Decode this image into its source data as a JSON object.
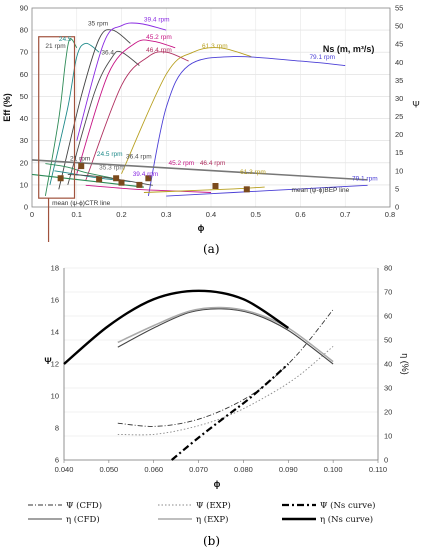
{
  "chart_data": [
    {
      "type": "line",
      "panel_label": "(a)",
      "xlabel": "ϕ",
      "ylabel": "Eff (%)",
      "y2label": "Ψ",
      "xlim": [
        0,
        0.8
      ],
      "ylim": [
        0,
        90
      ],
      "y2lim": [
        0,
        55
      ],
      "xticks": [
        "0",
        "0.1",
        "0.2",
        "0.3",
        "0.4",
        "0.5",
        "0.6",
        "0.7",
        "0.8"
      ],
      "yticks": [
        "0",
        "10",
        "20",
        "30",
        "40",
        "50",
        "60",
        "70",
        "80",
        "90"
      ],
      "y2ticks": [
        "0",
        "5",
        "10",
        "15",
        "20",
        "25",
        "30",
        "35",
        "40",
        "45",
        "50",
        "55"
      ],
      "grid": true,
      "colors": {
        "n21": "#2e8b57",
        "n245": "#1f8a8a",
        "n333": "#666666",
        "n35": "#444444",
        "n364": "#4b4b4b",
        "n394": "#8a2be2",
        "n452": "#c71585",
        "n464": "#b03060",
        "n613": "#b8a020",
        "n791": "#4b3fd6",
        "ns_marker": "#7a4a1c",
        "highlight": "#a0523d"
      },
      "annotation_ns": "Ns (m, m³/s)",
      "annotation_mean_ctr": "mean (ψ-ϕ)CTR line",
      "annotation_mean_bep": "mean (ψ-ϕ)BEP line",
      "efficiency_series": [
        {
          "name": "21 rpm",
          "color_key": "n21",
          "points": [
            [
              0.03,
              5
            ],
            [
              0.06,
              40
            ],
            [
              0.075,
              66
            ],
            [
              0.085,
              76
            ],
            [
              0.1,
              72
            ]
          ]
        },
        {
          "name": "24.5 rpm",
          "color_key": "n245",
          "points": [
            [
              0.04,
              10
            ],
            [
              0.08,
              45
            ],
            [
              0.1,
              68
            ],
            [
              0.12,
              74
            ],
            [
              0.15,
              70
            ]
          ]
        },
        {
          "name": "35 rpm",
          "color_key": "n35",
          "points": [
            [
              0.06,
              8
            ],
            [
              0.11,
              50
            ],
            [
              0.15,
              76
            ],
            [
              0.18,
              80
            ],
            [
              0.22,
              74
            ]
          ]
        },
        {
          "name": "36.4 rpm",
          "color_key": "n364",
          "points": [
            [
              0.08,
              10
            ],
            [
              0.14,
              52
            ],
            [
              0.18,
              68
            ],
            [
              0.2,
              70
            ],
            [
              0.24,
              64
            ]
          ]
        },
        {
          "name": "39.4 rpm",
          "color_key": "n394",
          "points": [
            [
              0.1,
              30
            ],
            [
              0.16,
              74
            ],
            [
              0.2,
              82
            ],
            [
              0.24,
              83
            ],
            [
              0.3,
              80
            ]
          ]
        },
        {
          "name": "45.2 rpm",
          "color_key": "n452",
          "points": [
            [
              0.1,
              15
            ],
            [
              0.17,
              60
            ],
            [
              0.23,
              74
            ],
            [
              0.27,
              75
            ],
            [
              0.32,
              72
            ]
          ]
        },
        {
          "name": "46.4 rpm",
          "color_key": "n464",
          "points": [
            [
              0.12,
              12
            ],
            [
              0.2,
              55
            ],
            [
              0.26,
              68
            ],
            [
              0.3,
              70
            ],
            [
              0.35,
              66
            ]
          ]
        },
        {
          "name": "61.3 rpm",
          "color_key": "n613",
          "points": [
            [
              0.2,
              15
            ],
            [
              0.3,
              60
            ],
            [
              0.36,
              70
            ],
            [
              0.42,
              72
            ],
            [
              0.49,
              68
            ]
          ]
        },
        {
          "name": "79.1 rpm",
          "color_key": "n791",
          "points": [
            [
              0.26,
              5
            ],
            [
              0.3,
              45
            ],
            [
              0.35,
              64
            ],
            [
              0.45,
              68
            ],
            [
              0.6,
              66
            ],
            [
              0.7,
              64
            ]
          ]
        }
      ],
      "psi_series": [
        {
          "name": "21 rpm",
          "color_key": "n21",
          "points": [
            [
              0.03,
              12
            ],
            [
              0.08,
              11
            ],
            [
              0.12,
              9.5
            ],
            [
              0.18,
              8
            ]
          ]
        },
        {
          "name": "24.5 rpm",
          "color_key": "n245",
          "points": [
            [
              0.05,
              10
            ],
            [
              0.1,
              9
            ],
            [
              0.15,
              8
            ],
            [
              0.22,
              7
            ]
          ]
        },
        {
          "name": "36.4 rpm",
          "color_key": "n364",
          "points": [
            [
              0.08,
              9
            ],
            [
              0.14,
              8.5
            ],
            [
              0.2,
              7.5
            ],
            [
              0.27,
              6
            ]
          ]
        },
        {
          "name": "45.2 rpm",
          "color_key": "n452",
          "points": [
            [
              0.12,
              6
            ],
            [
              0.22,
              5
            ],
            [
              0.3,
              4.5
            ],
            [
              0.4,
              4
            ]
          ]
        },
        {
          "name": "61.3 rpm",
          "color_key": "n613",
          "points": [
            [
              0.25,
              4
            ],
            [
              0.35,
              4.5
            ],
            [
              0.45,
              5
            ],
            [
              0.52,
              5.5
            ]
          ]
        },
        {
          "name": "79.1 rpm",
          "color_key": "n791",
          "points": [
            [
              0.3,
              3
            ],
            [
              0.45,
              4
            ],
            [
              0.6,
              5
            ],
            [
              0.75,
              6
            ]
          ]
        }
      ],
      "ns_points": [
        [
          0.064,
          13
        ],
        [
          0.11,
          18.5
        ],
        [
          0.15,
          12.5
        ],
        [
          0.188,
          13
        ],
        [
          0.2,
          11
        ],
        [
          0.24,
          10
        ],
        [
          0.26,
          13
        ],
        [
          0.41,
          9.5
        ],
        [
          0.48,
          8
        ]
      ],
      "mean_ctr_line": [
        [
          0.0,
          9
        ],
        [
          0.25,
          5.5
        ]
      ],
      "mean_bep_line": [
        [
          0.0,
          13
        ],
        [
          0.75,
          7.5
        ]
      ],
      "highlight_box": {
        "x": [
          0.015,
          0.095
        ],
        "y": [
          4,
          77
        ]
      },
      "curve_labels": [
        {
          "text": "21 rpm",
          "x": 0.03,
          "y": 72,
          "color_key": "n35"
        },
        {
          "text": "24.5",
          "x": 0.06,
          "y": 75,
          "color_key": "n245"
        },
        {
          "text": "35 rpm",
          "x": 0.125,
          "y": 82,
          "color_key": "n35"
        },
        {
          "text": "39.4 rpm",
          "x": 0.25,
          "y": 84,
          "color_key": "n394"
        },
        {
          "text": "36.4",
          "x": 0.155,
          "y": 69,
          "color_key": "n364"
        },
        {
          "text": "45.2 rpm",
          "x": 0.255,
          "y": 76,
          "color_key": "n452"
        },
        {
          "text": "46.4 rpm",
          "x": 0.255,
          "y": 70,
          "color_key": "n464"
        },
        {
          "text": "61.3 rpm",
          "x": 0.38,
          "y": 72,
          "color_key": "n613"
        },
        {
          "text": "79.1 rpm",
          "x": 0.62,
          "y": 67,
          "color_key": "n791"
        },
        {
          "text": "21 rpm",
          "x": 0.085,
          "y": 21,
          "color_key": "n35"
        },
        {
          "text": "24.5 rpm",
          "x": 0.145,
          "y": 23,
          "color_key": "n245"
        },
        {
          "text": "36.4 rpm",
          "x": 0.21,
          "y": 22,
          "color_key": "n364"
        },
        {
          "text": "35.3 rpm",
          "x": 0.15,
          "y": 17,
          "color_key": "n333"
        },
        {
          "text": "45.2 rpm",
          "x": 0.305,
          "y": 19,
          "color_key": "n452"
        },
        {
          "text": "46.4 rpm",
          "x": 0.375,
          "y": 19,
          "color_key": "n464"
        },
        {
          "text": "39.4 rpm",
          "x": 0.225,
          "y": 14,
          "color_key": "n394"
        },
        {
          "text": "61.3 rpm",
          "x": 0.465,
          "y": 15,
          "color_key": "n613"
        },
        {
          "text": "79.1 rpm",
          "x": 0.715,
          "y": 12,
          "color_key": "n791"
        }
      ]
    },
    {
      "type": "line",
      "panel_label": "(b)",
      "xlabel": "ϕ",
      "ylabel": "Ψ",
      "y2label": "η (%)",
      "xlim": [
        0.04,
        0.11
      ],
      "ylim": [
        6,
        18
      ],
      "y2lim": [
        0,
        80
      ],
      "xticks": [
        "0.040",
        "0.050",
        "0.060",
        "0.070",
        "0.080",
        "0.090",
        "0.100",
        "0.110"
      ],
      "yticks": [
        "6",
        "8",
        "10",
        "12",
        "14",
        "16",
        "18"
      ],
      "y2ticks": [
        "0",
        "10",
        "20",
        "30",
        "40",
        "50",
        "60",
        "70",
        "80"
      ],
      "grid": true,
      "series": [
        {
          "name": "Ψ (CFD)",
          "axis": "left",
          "style": "dashdot-thin",
          "x": [
            0.052,
            0.06,
            0.068,
            0.076,
            0.084,
            0.092,
            0.1
          ],
          "y": [
            8.3,
            8.1,
            8.4,
            9.2,
            10.5,
            12.6,
            15.4
          ]
        },
        {
          "name": "Ψ (EXP)",
          "axis": "left",
          "style": "dotted-gray",
          "x": [
            0.052,
            0.06,
            0.068,
            0.076,
            0.084,
            0.092,
            0.1
          ],
          "y": [
            7.6,
            7.6,
            8.0,
            8.7,
            9.8,
            11.2,
            13.1
          ]
        },
        {
          "name": "Ψ (Ns curve)",
          "axis": "left",
          "style": "dashdot-thick",
          "x": [
            0.064,
            0.07,
            0.076,
            0.082,
            0.09
          ],
          "y": [
            6.0,
            7.4,
            8.7,
            10.0,
            12.0
          ]
        },
        {
          "name": "η (CFD)",
          "axis": "right",
          "style": "solid-dark",
          "x": [
            0.052,
            0.06,
            0.068,
            0.075,
            0.082,
            0.09,
            0.1
          ],
          "y": [
            47,
            55,
            61.5,
            63,
            61,
            54,
            40
          ]
        },
        {
          "name": "η (EXP)",
          "axis": "right",
          "style": "solid-gray",
          "x": [
            0.052,
            0.06,
            0.068,
            0.075,
            0.082,
            0.09,
            0.1
          ],
          "y": [
            49,
            56,
            62,
            63.5,
            61.5,
            55,
            41
          ]
        },
        {
          "name": "η (Ns curve)",
          "axis": "right",
          "style": "solid-thick",
          "x": [
            0.04,
            0.05,
            0.06,
            0.07,
            0.08,
            0.09
          ],
          "y": [
            40,
            56,
            67,
            70.5,
            67,
            55
          ]
        }
      ]
    }
  ]
}
